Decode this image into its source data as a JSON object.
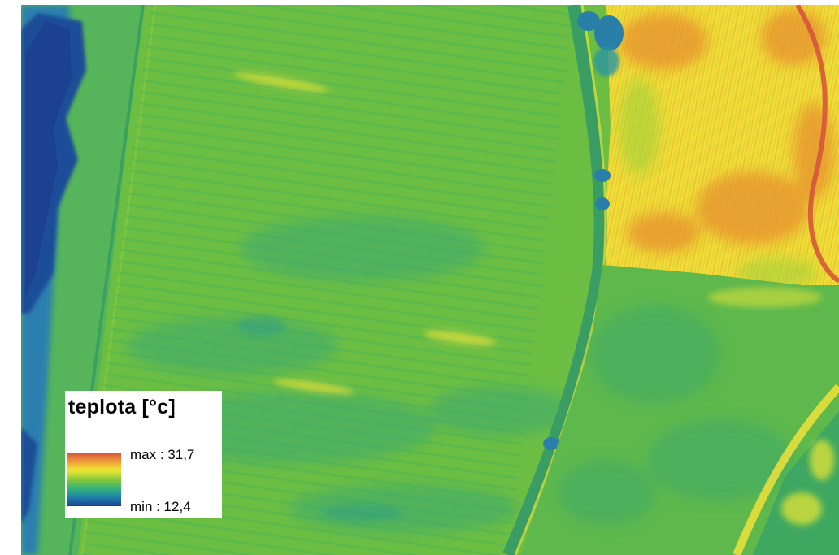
{
  "legend": {
    "title": "teplota [°c]",
    "max_label": "max : 31,7",
    "min_label": "min : 12,4",
    "colormap": [
      "#1c3f8f",
      "#1f7fa9",
      "#30b07e",
      "#7cc63e",
      "#ede831",
      "#f2a23a",
      "#d6503a"
    ]
  },
  "colors": {
    "field_main": "#6cbe43",
    "field_cool": "#48b35a",
    "hedge_cold": "#1e4d98",
    "hot_field": "#f2dd36",
    "hot_spot": "#e7902f"
  }
}
